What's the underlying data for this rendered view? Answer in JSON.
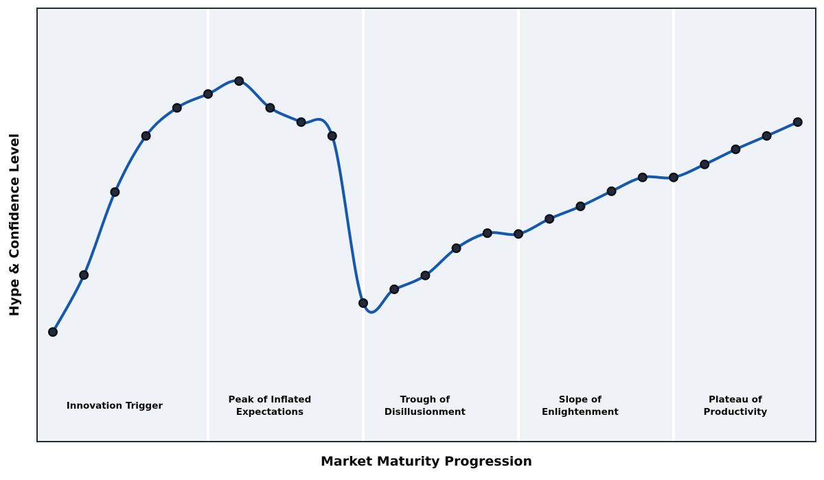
{
  "figure": {
    "xlabel": "Market Maturity Progression",
    "ylabel": "Hype & Confidence Level"
  },
  "phases": [
    {
      "label": "Innovation Trigger",
      "x": 3
    },
    {
      "label": "Peak of Inflated\nExpectations",
      "x": 8
    },
    {
      "label": "Trough of\nDisillusionment",
      "x": 13
    },
    {
      "label": "Slope of\nEnlightenment",
      "x": 18
    },
    {
      "label": "Plateau of\nProductivity",
      "x": 23
    }
  ],
  "chart_data": {
    "type": "line",
    "title": "",
    "xlabel": "Market Maturity Progression",
    "ylabel": "Hype & Confidence Level",
    "x": [
      1,
      2,
      3,
      4,
      5,
      6,
      7,
      8,
      9,
      10,
      11,
      12,
      13,
      14,
      15,
      16,
      17,
      18,
      19,
      20,
      21,
      22,
      23,
      24,
      25
    ],
    "hype": [
      25.2,
      38.4,
      57.6,
      70.6,
      77.1,
      80.3,
      83.3,
      77.1,
      73.8,
      70.6,
      31.9,
      35.1,
      38.3,
      44.6,
      48.1,
      47.9,
      51.4,
      54.3,
      57.8,
      61.0,
      61.0,
      64.0,
      67.5,
      70.6,
      73.8
    ],
    "ylim": [
      0,
      100
    ],
    "grid": false,
    "smoothing": "spline",
    "phase_boundaries_x": [
      6,
      11,
      16,
      21
    ],
    "phase_names": [
      "Innovation Trigger",
      "Peak of Inflated Expectations",
      "Trough of Disillusionment",
      "Slope of Enlightenment",
      "Plateau of Productivity"
    ],
    "colors": {
      "line": "#1558b0",
      "marker_fill": "#232a3a",
      "marker_edge": "#0d1117",
      "plot_background": "#eff2f6",
      "separator": "#ffffff",
      "border": "#262b33",
      "text": "#0a0a0a"
    }
  }
}
